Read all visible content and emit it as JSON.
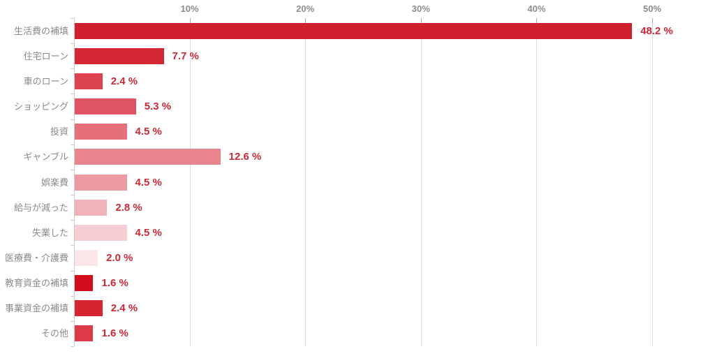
{
  "chart_data": {
    "type": "bar",
    "orientation": "horizontal",
    "title": "",
    "xlabel": "",
    "ylabel": "",
    "grid": true,
    "xlim": [
      0,
      52.5
    ],
    "categories": [
      "生活費の補填",
      "住宅ローン",
      "車のローン",
      "ショッピング",
      "投資",
      "ギャンブル",
      "娯楽費",
      "給与が減った",
      "失業した",
      "医療費・介護費",
      "教育資金の補填",
      "事業資金の補填",
      "その他"
    ],
    "values": [
      48.2,
      7.7,
      2.4,
      5.3,
      4.5,
      12.6,
      4.5,
      2.8,
      4.5,
      2.0,
      1.6,
      2.4,
      1.6
    ],
    "value_labels": [
      "48.2 %",
      "7.7 %",
      "2.4 %",
      "5.3 %",
      "4.5 %",
      "12.6 %",
      "4.5 %",
      "2.8 %",
      "4.5 %",
      "2.0 %",
      "1.6 %",
      "2.4 %",
      "1.6 %"
    ],
    "bar_colors": [
      "#D01F2D",
      "#D32734",
      "#DC4250",
      "#DF5462",
      "#E5707A",
      "#E8858E",
      "#EC9AA2",
      "#F0B3BA",
      "#F5CDD2",
      "#FAE5E7",
      "#D20E1E",
      "#D72431",
      "#DB3A46"
    ],
    "x_tick_values": [
      10,
      20,
      30,
      40,
      50
    ],
    "x_tick_labels": [
      "10%",
      "20%",
      "30%",
      "40%",
      "50%"
    ],
    "colors": {
      "value_label": "#CC2936",
      "category_label": "#8A8A8A",
      "axis_tick_label": "#8C8C8C",
      "axis_line": "#CCCCCC",
      "gridline": "#DEDEDD",
      "background": "#FFFFFF"
    }
  }
}
